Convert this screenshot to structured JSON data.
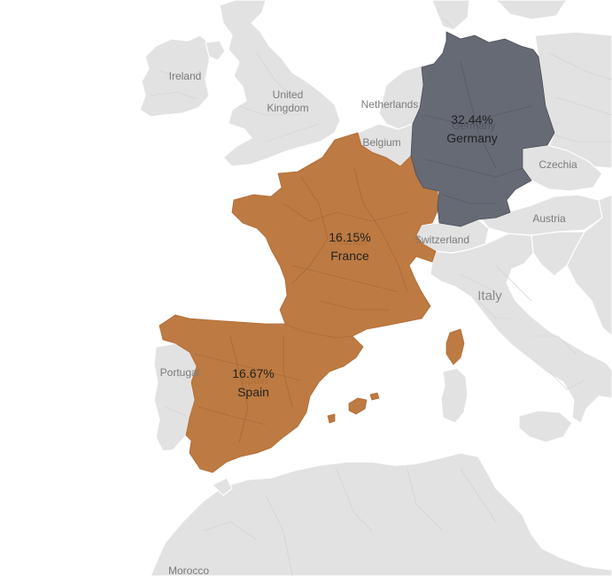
{
  "map": {
    "metric_regions": [
      {
        "country": "Germany",
        "value": "32.44%",
        "color": "#656a75"
      },
      {
        "country": "Spain",
        "value": "16.67%",
        "color": "#bd7a42"
      },
      {
        "country": "France",
        "value": "16.15%",
        "color": "#bd7a42"
      }
    ],
    "base_labels": {
      "ireland": "Ireland",
      "uk_line1": "United",
      "uk_line2": "Kingdom",
      "netherlands": "Netherlands",
      "belgium": "Belgium",
      "czechia": "Czechia",
      "austria": "Austria",
      "switzerland": "Switzerland",
      "italy": "Italy",
      "portugal": "Portugal",
      "morocco": "Morocco"
    },
    "base_color": "#e2e2e2",
    "background": "#ffffff"
  }
}
